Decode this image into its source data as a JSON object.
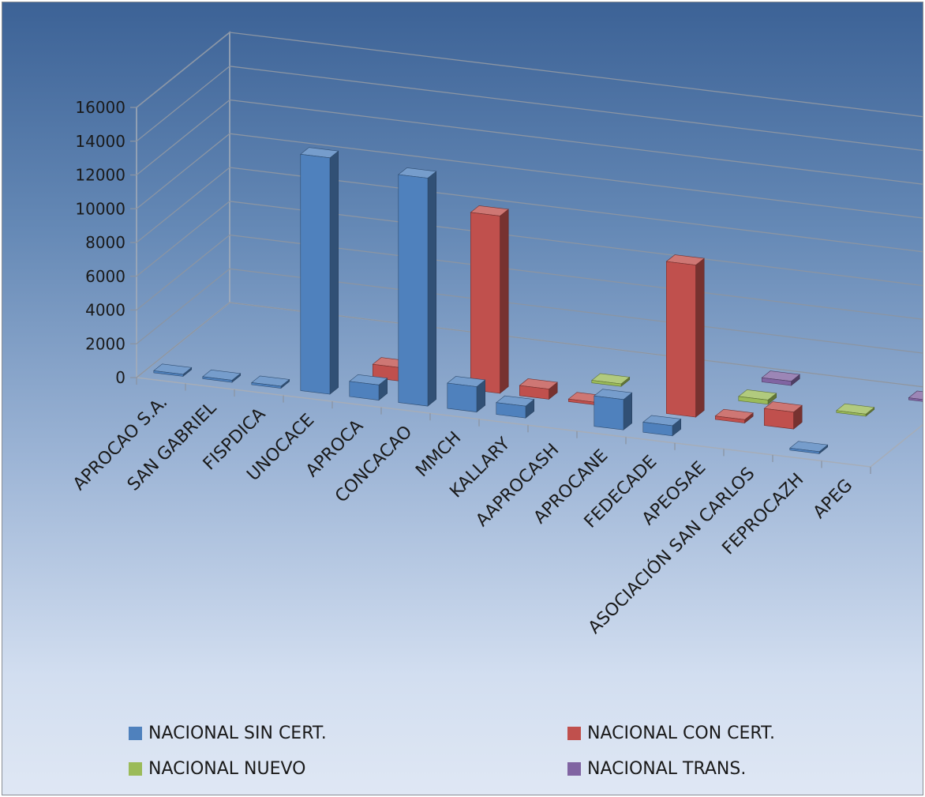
{
  "chart_data": {
    "type": "bar",
    "variant": "3d-clustered-column",
    "title": "",
    "xlabel": "",
    "ylabel": "",
    "ylim": [
      0,
      16000
    ],
    "yticks": [
      0,
      2000,
      4000,
      6000,
      8000,
      10000,
      12000,
      14000,
      16000
    ],
    "grid": true,
    "legend_position": "bottom",
    "categories": [
      "APROCAO S.A.",
      "SAN GABRIEL",
      "FISPDICA",
      "UNOCACE",
      "APROCA",
      "CONCACAO",
      "MMCH",
      "KALLARY",
      "AAPROCASH",
      "APROCANE",
      "FEDECADE",
      "APEOSAE",
      "ASOCIACIÓN SAN CARLOS",
      "FEPROCAZH",
      "APEG"
    ],
    "series": [
      {
        "name": "NACIONAL SIN CERT.",
        "color": "#4f81bd",
        "values": [
          50,
          50,
          50,
          14000,
          900,
          13500,
          1500,
          700,
          0,
          1800,
          600,
          0,
          0,
          50,
          0
        ]
      },
      {
        "name": "NACIONAL CON CERT.",
        "color": "#c0504d",
        "values": [
          0,
          0,
          0,
          0,
          800,
          0,
          10500,
          600,
          150,
          0,
          9000,
          200,
          1000,
          0,
          0
        ]
      },
      {
        "name": "NACIONAL NUEVO",
        "color": "#9bbb59",
        "values": [
          0,
          0,
          0,
          0,
          0,
          0,
          0,
          0,
          150,
          0,
          0,
          250,
          0,
          100,
          0
        ]
      },
      {
        "name": "NACIONAL TRANS.",
        "color": "#8064a2",
        "values": [
          0,
          0,
          0,
          0,
          0,
          0,
          0,
          0,
          0,
          0,
          0,
          250,
          0,
          0,
          100
        ]
      }
    ]
  }
}
